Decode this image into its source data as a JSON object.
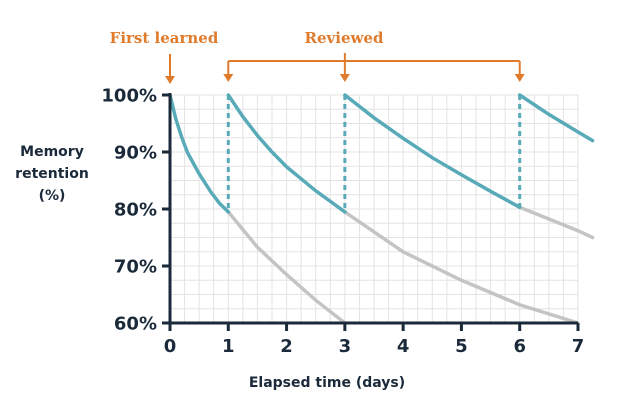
{
  "chart_data": {
    "type": "line",
    "annotations": {
      "first_learned": "First learned",
      "reviewed": "Reviewed"
    },
    "ylabel_lines": [
      "Memory",
      "retention",
      "(%)"
    ],
    "xlabel": "Elapsed time (days)",
    "x_ticks": [
      "0",
      "1",
      "2",
      "3",
      "4",
      "5",
      "6",
      "7"
    ],
    "y_ticks": [
      "60%",
      "70%",
      "80%",
      "90%",
      "100%"
    ],
    "xlim": [
      0,
      7
    ],
    "ylim": [
      60,
      100
    ],
    "grid": true,
    "review_days": [
      1,
      3,
      6
    ],
    "series": [
      {
        "role": "retention",
        "segments": [
          [
            [
              0,
              100
            ],
            [
              0.1,
              95.8
            ],
            [
              0.2,
              92.6
            ],
            [
              0.3,
              89.9
            ],
            [
              0.5,
              86.2
            ],
            [
              0.7,
              83.0
            ],
            [
              0.85,
              81.0
            ],
            [
              1,
              79.5
            ]
          ],
          [
            [
              1,
              100
            ],
            [
              1.25,
              96.2
            ],
            [
              1.5,
              92.9
            ],
            [
              1.75,
              90.0
            ],
            [
              2,
              87.4
            ],
            [
              2.5,
              83.2
            ],
            [
              3,
              79.5
            ]
          ],
          [
            [
              3,
              100
            ],
            [
              3.5,
              96.0
            ],
            [
              4,
              92.4
            ],
            [
              4.5,
              89.0
            ],
            [
              5,
              86.0
            ],
            [
              5.5,
              83.1
            ],
            [
              6,
              80.3
            ]
          ],
          [
            [
              6,
              100
            ],
            [
              6.5,
              96.6
            ],
            [
              7,
              93.5
            ],
            [
              7.25,
              92.0
            ]
          ]
        ]
      },
      {
        "role": "forgetting",
        "segments": [
          [
            [
              1,
              79.5
            ],
            [
              1.5,
              73.3
            ],
            [
              2,
              68.5
            ],
            [
              2.5,
              64.0
            ],
            [
              3,
              60.0
            ]
          ],
          [
            [
              3,
              79.5
            ],
            [
              4,
              72.5
            ],
            [
              5,
              67.5
            ],
            [
              6,
              63.2
            ],
            [
              7,
              60.0
            ]
          ],
          [
            [
              6,
              80.3
            ],
            [
              7,
              76.2
            ],
            [
              7.25,
              75.0
            ]
          ]
        ]
      }
    ],
    "colors": {
      "retention": "#58aab8",
      "forgetting": "#c4c4c4",
      "annotation": "#e07b2c",
      "axis": "#1b2a3a",
      "grid": "#e3e3e3"
    }
  }
}
